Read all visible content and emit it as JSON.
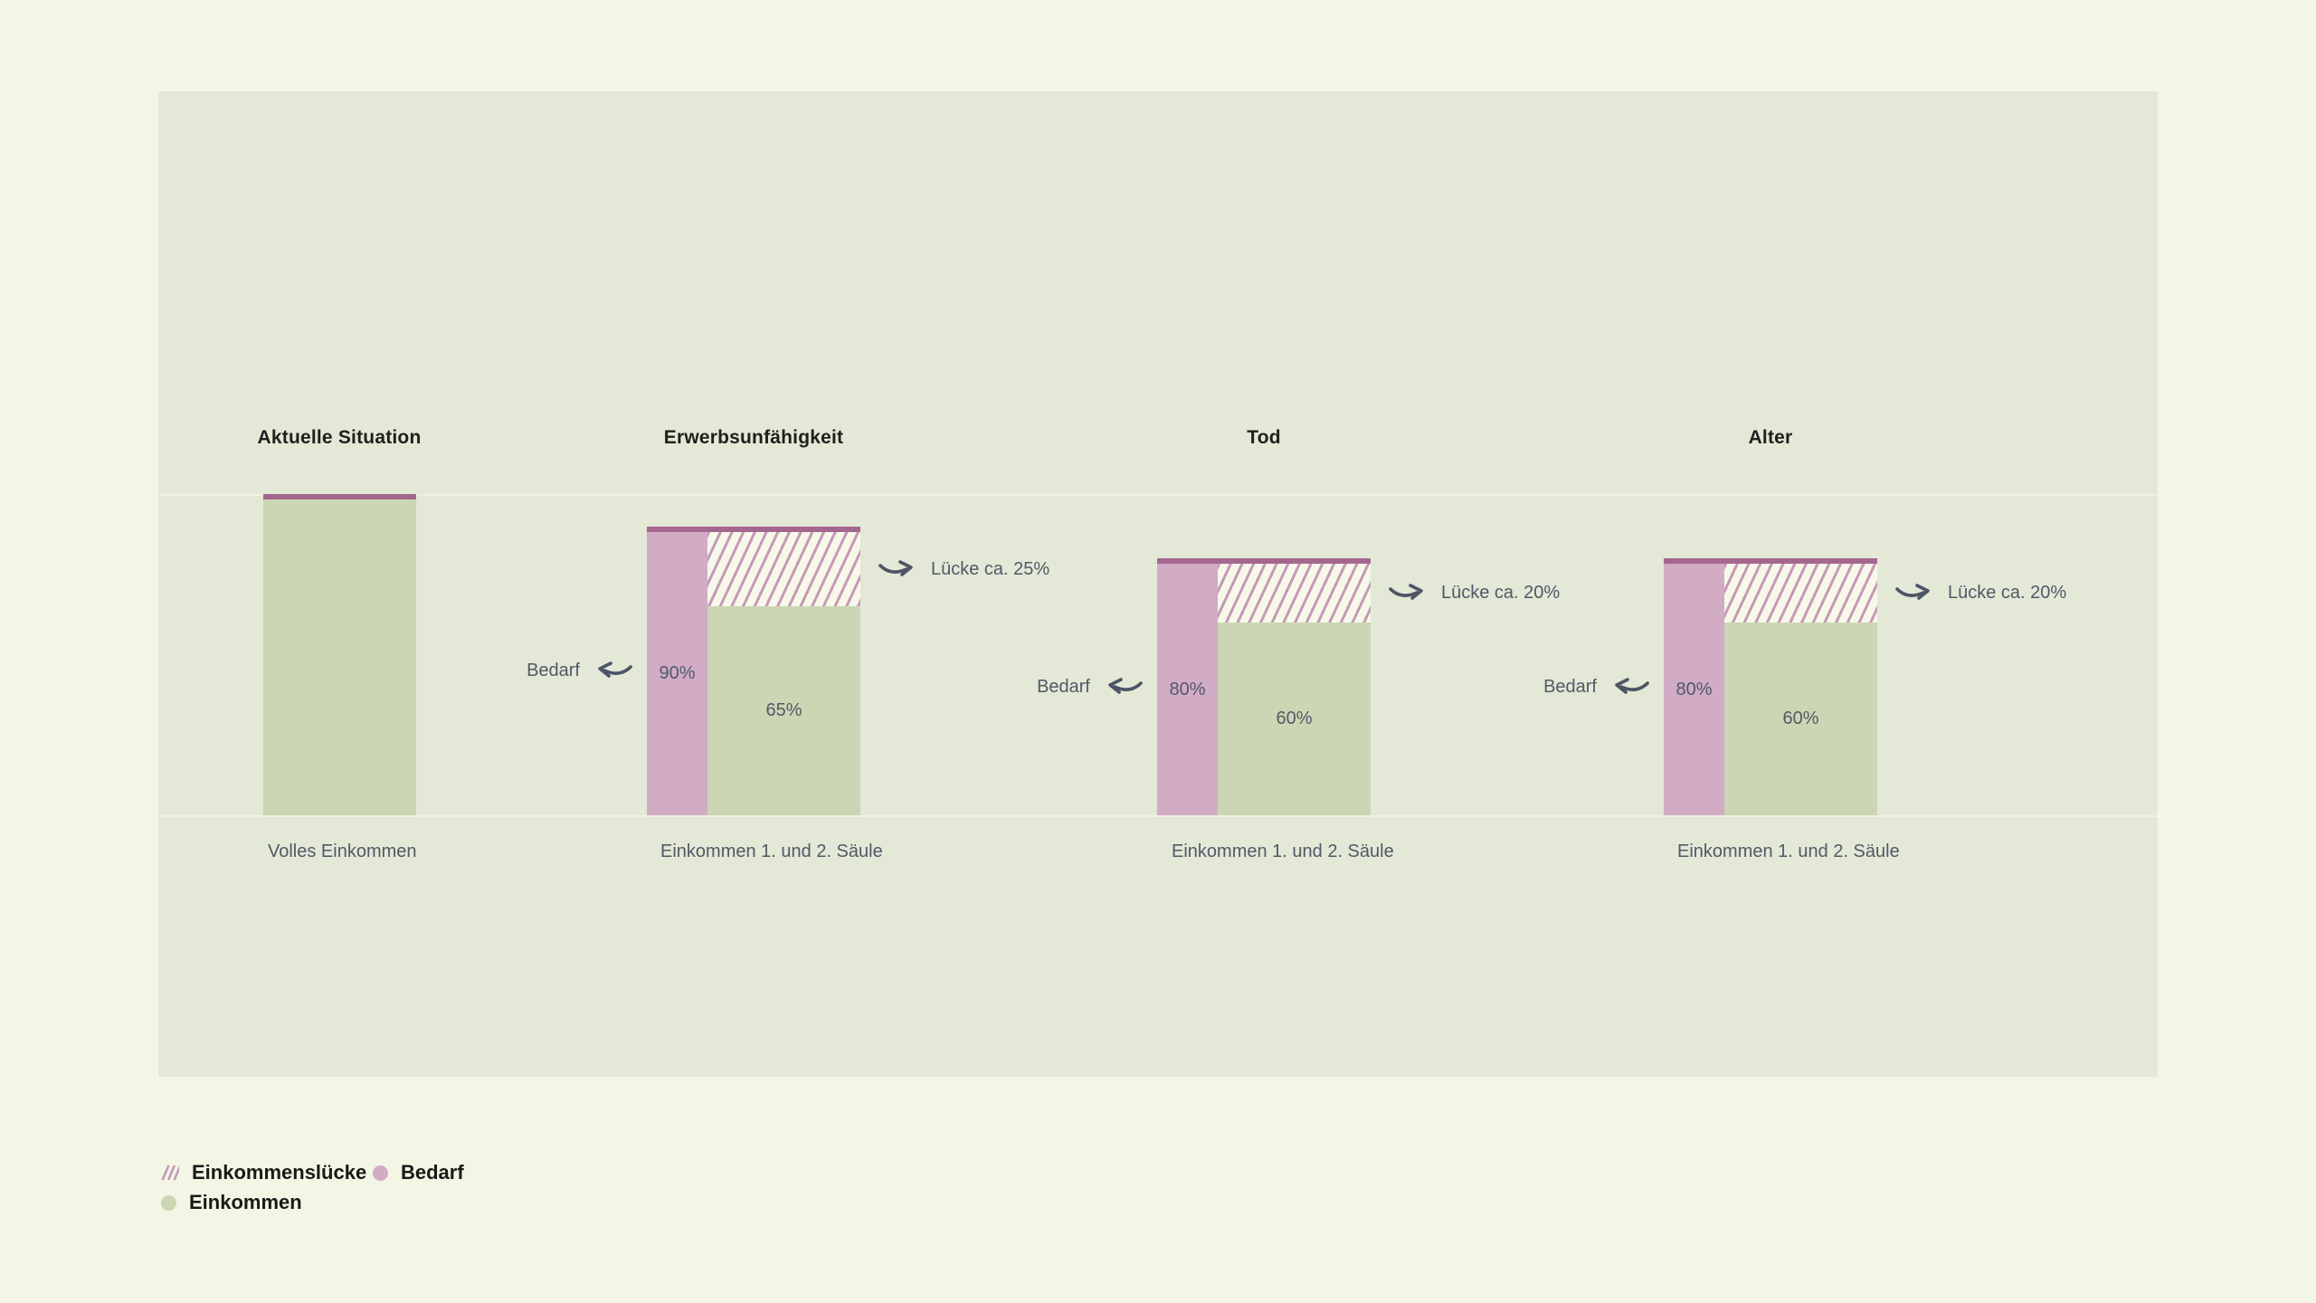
{
  "chart_data": {
    "type": "bar",
    "unit": "%",
    "ylim": [
      0,
      100
    ],
    "grid": false,
    "legend_position": "bottom-left",
    "categories": [
      "Aktuelle Situation",
      "Erwerbsunfähigkeit",
      "Tod",
      "Alter"
    ],
    "series": [
      {
        "name": "Bedarf",
        "values": [
          100,
          90,
          80,
          80
        ]
      },
      {
        "name": "Einkommen",
        "values": [
          100,
          65,
          60,
          60
        ]
      },
      {
        "name": "Einkommenslücke",
        "values": [
          0,
          25,
          20,
          20
        ]
      }
    ],
    "x_labels": [
      "Volles Einkommen",
      "Einkommen 1. und 2. Säule",
      "Einkommen 1. und 2. Säule",
      "Einkommen 1. und 2. Säule"
    ],
    "annotations": [
      "",
      "Lücke ca. 25%",
      "Lücke ca. 20%",
      "Lücke ca. 20%"
    ]
  },
  "groups": [
    {
      "title": "Aktuelle Situation",
      "axis_label": "Volles Einkommen"
    },
    {
      "title": "Erwerbsunfähigkeit",
      "axis_label": "Einkommen 1. und 2. Säule",
      "bedarf_label": "Bedarf",
      "bedarf_pct_label": "90%",
      "einkommen_pct_label": "65%",
      "luecke_label": "Lücke ca. 25%"
    },
    {
      "title": "Tod",
      "axis_label": "Einkommen 1. und 2. Säule",
      "bedarf_label": "Bedarf",
      "bedarf_pct_label": "80%",
      "einkommen_pct_label": "60%",
      "luecke_label": "Lücke ca. 20%"
    },
    {
      "title": "Alter",
      "axis_label": "Einkommen 1. und 2. Säule",
      "bedarf_label": "Bedarf",
      "bedarf_pct_label": "80%",
      "einkommen_pct_label": "60%",
      "luecke_label": "Lücke ca. 20%"
    }
  ],
  "legend": {
    "einkommensluecke": "Einkommenslücke",
    "bedarf": "Bedarf",
    "einkommen": "Einkommen"
  },
  "colors": {
    "page": "#f3f6e4",
    "panel": "#e4e8d6",
    "hairline": "#f0f2e1",
    "einkommen": "#cdd6b4",
    "bedarf": "#d2abc5",
    "bedarf_line": "#a5678f",
    "hatch_stripe": "#c59ab6",
    "hatch_bg": "#f7f8e9"
  }
}
